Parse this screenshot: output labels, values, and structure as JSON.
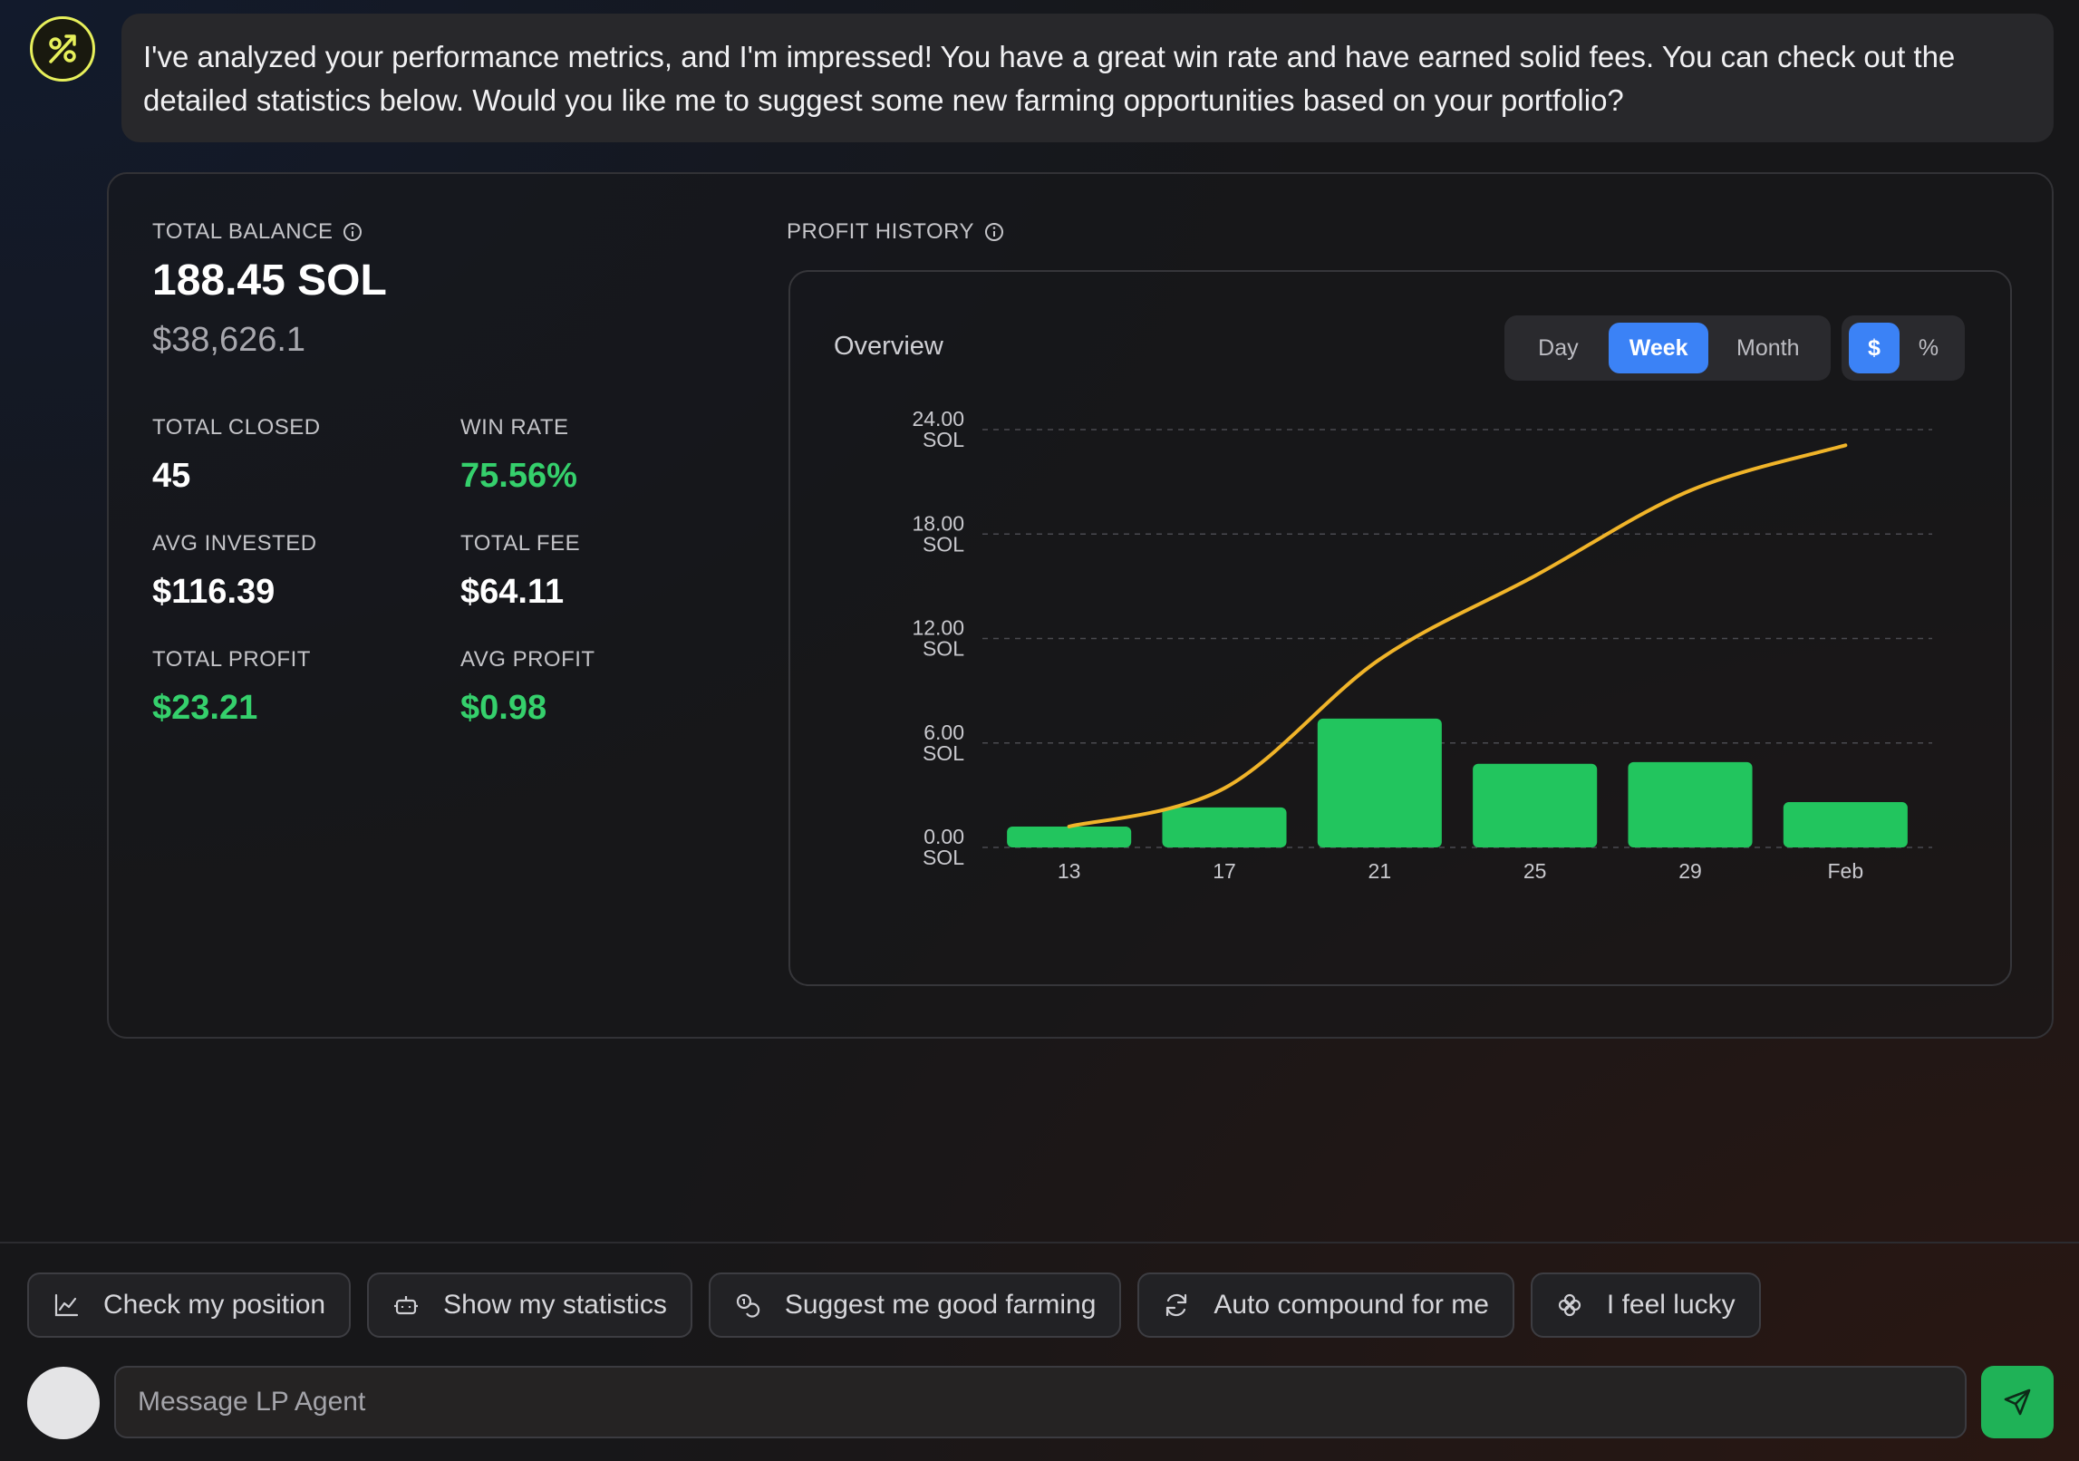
{
  "message": {
    "text": "I've analyzed your performance metrics, and I'm impressed! You have a great win rate and have earned solid fees. You can check out the detailed statistics below. Would you like me to suggest some new farming opportunities based on your portfolio?"
  },
  "balance": {
    "label": "TOTAL BALANCE",
    "sol": "188.45 SOL",
    "usd": "$38,626.1"
  },
  "metrics": {
    "total_closed": {
      "label": "TOTAL CLOSED",
      "value": "45"
    },
    "win_rate": {
      "label": "WIN RATE",
      "value": "75.56%"
    },
    "avg_invested": {
      "label": "AVG INVESTED",
      "value": "$116.39"
    },
    "total_fee": {
      "label": "TOTAL FEE",
      "value": "$64.11"
    },
    "total_profit": {
      "label": "TOTAL PROFIT",
      "value": "$23.21"
    },
    "avg_profit": {
      "label": "AVG PROFIT",
      "value": "$0.98"
    }
  },
  "profit_history": {
    "label": "PROFIT HISTORY",
    "overview": "Overview",
    "periods": [
      "Day",
      "Week",
      "Month"
    ],
    "active_period": "Week",
    "units": [
      "$",
      "%"
    ],
    "active_unit": "$"
  },
  "chart_data": {
    "type": "bar",
    "title": "",
    "categories": [
      "13",
      "17",
      "21",
      "25",
      "29",
      "Feb"
    ],
    "y_ticks": [
      "24.00 SOL",
      "18.00 SOL",
      "12.00 SOL",
      "6.00 SOL",
      "0.00 SOL"
    ],
    "ylim": [
      0,
      24
    ],
    "grid": true,
    "series": [
      {
        "type": "bar",
        "values": [
          1.2,
          2.3,
          7.4,
          4.8,
          4.9,
          2.6
        ],
        "color": "#22c55e"
      },
      {
        "type": "line",
        "values": [
          1.2,
          3.4,
          10.8,
          15.6,
          20.5,
          23.1
        ],
        "color": "#f0b429"
      }
    ]
  },
  "suggestions": [
    {
      "label": "Check my position",
      "icon": "chart-line-icon"
    },
    {
      "label": "Show my statistics",
      "icon": "bot-icon"
    },
    {
      "label": "Suggest me good farming",
      "icon": "coins-icon"
    },
    {
      "label": "Auto compound for me",
      "icon": "refresh-icon"
    },
    {
      "label": "I feel lucky",
      "icon": "clover-icon"
    }
  ],
  "input": {
    "placeholder": "Message LP Agent"
  },
  "colors": {
    "accent_blue": "#3b82f6",
    "profit_green": "#35d06c",
    "bar_green": "#22c55e",
    "line_yellow": "#f0b429",
    "send_green": "#1fb257",
    "avatar_yellow": "#e7f05b"
  }
}
